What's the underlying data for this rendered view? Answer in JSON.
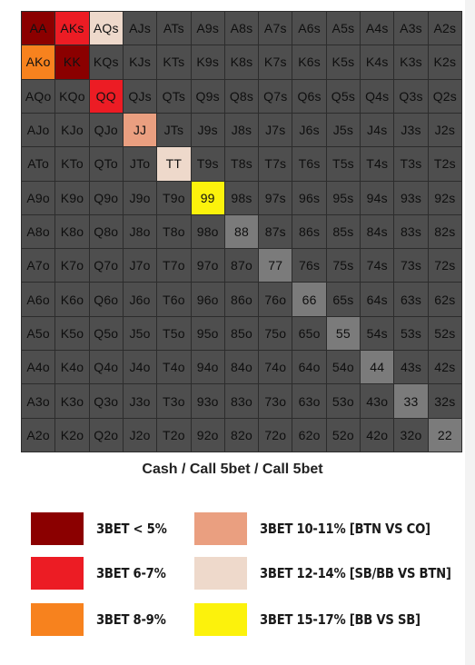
{
  "chart_data": {
    "type": "heatmap",
    "title": "Cash / Call 5bet / Call 5bet",
    "rows": [
      [
        "AA",
        "AKs",
        "AQs",
        "AJs",
        "ATs",
        "A9s",
        "A8s",
        "A7s",
        "A6s",
        "A5s",
        "A4s",
        "A3s",
        "A2s"
      ],
      [
        "AKo",
        "KK",
        "KQs",
        "KJs",
        "KTs",
        "K9s",
        "K8s",
        "K7s",
        "K6s",
        "K5s",
        "K4s",
        "K3s",
        "K2s"
      ],
      [
        "AQo",
        "KQo",
        "QQ",
        "QJs",
        "QTs",
        "Q9s",
        "Q8s",
        "Q7s",
        "Q6s",
        "Q5s",
        "Q4s",
        "Q3s",
        "Q2s"
      ],
      [
        "AJo",
        "KJo",
        "QJo",
        "JJ",
        "JTs",
        "J9s",
        "J8s",
        "J7s",
        "J6s",
        "J5s",
        "J4s",
        "J3s",
        "J2s"
      ],
      [
        "ATo",
        "KTo",
        "QTo",
        "JTo",
        "TT",
        "T9s",
        "T8s",
        "T7s",
        "T6s",
        "T5s",
        "T4s",
        "T3s",
        "T2s"
      ],
      [
        "A9o",
        "K9o",
        "Q9o",
        "J9o",
        "T9o",
        "99",
        "98s",
        "97s",
        "96s",
        "95s",
        "94s",
        "93s",
        "92s"
      ],
      [
        "A8o",
        "K8o",
        "Q8o",
        "J8o",
        "T8o",
        "98o",
        "88",
        "87s",
        "86s",
        "85s",
        "84s",
        "83s",
        "82s"
      ],
      [
        "A7o",
        "K7o",
        "Q7o",
        "J7o",
        "T7o",
        "97o",
        "87o",
        "77",
        "76s",
        "75s",
        "74s",
        "73s",
        "72s"
      ],
      [
        "A6o",
        "K6o",
        "Q6o",
        "J6o",
        "T6o",
        "96o",
        "86o",
        "76o",
        "66",
        "65s",
        "64s",
        "63s",
        "62s"
      ],
      [
        "A5o",
        "K5o",
        "Q5o",
        "J5o",
        "T5o",
        "95o",
        "85o",
        "75o",
        "65o",
        "55",
        "54s",
        "53s",
        "52s"
      ],
      [
        "A4o",
        "K4o",
        "Q4o",
        "J4o",
        "T4o",
        "94o",
        "84o",
        "74o",
        "64o",
        "54o",
        "44",
        "43s",
        "42s"
      ],
      [
        "A3o",
        "K3o",
        "Q3o",
        "J3o",
        "T3o",
        "93o",
        "83o",
        "73o",
        "63o",
        "53o",
        "43o",
        "33",
        "32s"
      ],
      [
        "A2o",
        "K2o",
        "Q2o",
        "J2o",
        "T2o",
        "92o",
        "82o",
        "72o",
        "62o",
        "52o",
        "42o",
        "32o",
        "22"
      ]
    ],
    "highlights": {
      "AA": "3bet_lt5",
      "KK": "3bet_lt5",
      "AKs": "3bet_6_7",
      "QQ": "3bet_6_7",
      "AKo": "3bet_8_9",
      "JJ": "3bet_10_11",
      "AQs": "3bet_12_14",
      "TT": "3bet_12_14",
      "99": "3bet_15_17",
      "88": "call",
      "77": "call",
      "66": "call",
      "55": "call",
      "44": "call",
      "33": "call",
      "22": "call"
    },
    "colors": {
      "3bet_lt5": "#8b0000",
      "3bet_6_7": "#ec1c24",
      "3bet_8_9": "#f7821e",
      "3bet_10_11": "#ea9f80",
      "3bet_12_14": "#eed9cb",
      "3bet_15_17": "#fcf20c",
      "call": "#7b7b7b",
      "fold": "#4e4e4e"
    },
    "legend": [
      {
        "key": "3bet_lt5",
        "label": "3BET < 5%"
      },
      {
        "key": "3bet_6_7",
        "label": "3BET 6-7%"
      },
      {
        "key": "3bet_8_9",
        "label": "3BET 8-9%"
      },
      {
        "key": "3bet_10_11",
        "label": "3BET 10-11% [BTN VS CO]"
      },
      {
        "key": "3bet_12_14",
        "label": "3BET 12-14% [SB/BB VS BTN]"
      },
      {
        "key": "3bet_15_17",
        "label": "3BET 15-17% [BB VS SB]"
      }
    ]
  }
}
